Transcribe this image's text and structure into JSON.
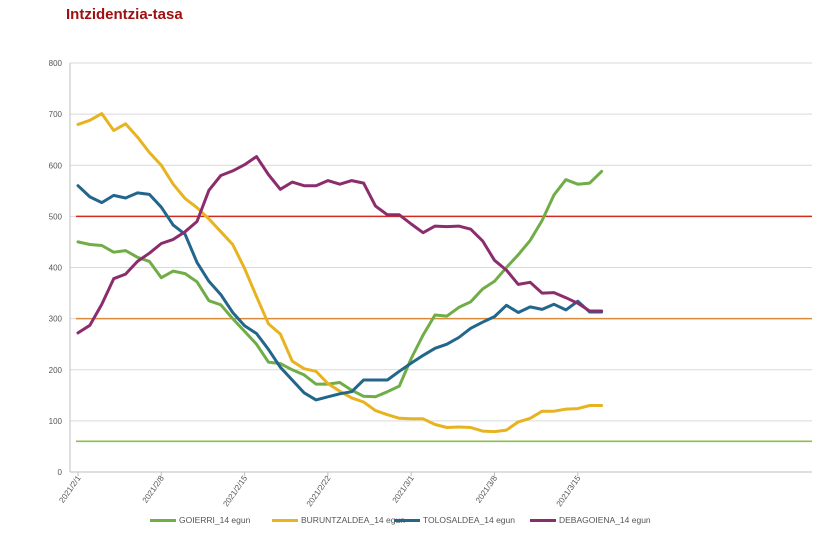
{
  "chart_data": {
    "type": "line",
    "title": "Intzidentzia-tasa",
    "xlabel": "",
    "ylabel": "",
    "ylim": [
      0,
      800
    ],
    "yticks": [
      0,
      100,
      200,
      300,
      400,
      500,
      600,
      700,
      800
    ],
    "x_tick_labels": [
      "2021/2/1",
      "2021/2/8",
      "2021/2/15",
      "2021/2/22",
      "2021/3/1",
      "2021/3/8",
      "2021/3/15"
    ],
    "x_tick_index": [
      0,
      7,
      14,
      21,
      28,
      35,
      42
    ],
    "n_points": 45,
    "grid": true,
    "legend_position": "bottom",
    "reference_lines": [
      {
        "value": 500,
        "color": "#d42a1c"
      },
      {
        "value": 300,
        "color": "#d98a3a"
      },
      {
        "value": 60,
        "color": "#8cbf4a"
      }
    ],
    "series": [
      {
        "name": "GOIERRI_14 egun",
        "color": "#70ad47",
        "values": [
          450,
          445,
          443,
          430,
          433,
          420,
          412,
          380,
          393,
          388,
          372,
          335,
          327,
          300,
          275,
          250,
          215,
          212,
          200,
          190,
          172,
          172,
          175,
          160,
          148,
          147,
          157,
          168,
          222,
          268,
          307,
          305,
          322,
          333,
          358,
          373,
          400,
          425,
          453,
          492,
          542,
          572,
          563,
          565,
          588
        ]
      },
      {
        "name": "BURUNTZALDEA_14 egun",
        "color": "#e8b321",
        "values": [
          680,
          688,
          701,
          668,
          681,
          655,
          625,
          600,
          563,
          535,
          517,
          495,
          470,
          445,
          398,
          343,
          290,
          270,
          217,
          202,
          197,
          173,
          158,
          145,
          137,
          120,
          112,
          105,
          104,
          104,
          93,
          87,
          88,
          87,
          80,
          79,
          82,
          98,
          105,
          119,
          119,
          123,
          124,
          130,
          130
        ]
      },
      {
        "name": "TOLOSALDEA_14 egun",
        "color": "#22668c",
        "values": [
          560,
          538,
          527,
          541,
          536,
          546,
          543,
          518,
          483,
          465,
          410,
          373,
          347,
          312,
          286,
          271,
          240,
          205,
          180,
          155,
          141,
          147,
          153,
          157,
          180,
          180,
          180,
          197,
          213,
          228,
          242,
          250,
          263,
          281,
          293,
          304,
          326,
          312,
          323,
          318,
          328,
          317,
          334,
          313,
          313
        ]
      },
      {
        "name": "DEBAGOIENA_14 egun",
        "color": "#8b2d6d",
        "values": [
          272,
          287,
          328,
          378,
          387,
          412,
          428,
          447,
          455,
          470,
          490,
          551,
          580,
          589,
          601,
          617,
          582,
          553,
          567,
          560,
          560,
          570,
          563,
          570,
          565,
          520,
          503,
          503,
          485,
          468,
          481,
          480,
          481,
          475,
          452,
          414,
          395,
          367,
          371,
          350,
          351,
          341,
          330,
          315,
          315
        ]
      }
    ]
  }
}
